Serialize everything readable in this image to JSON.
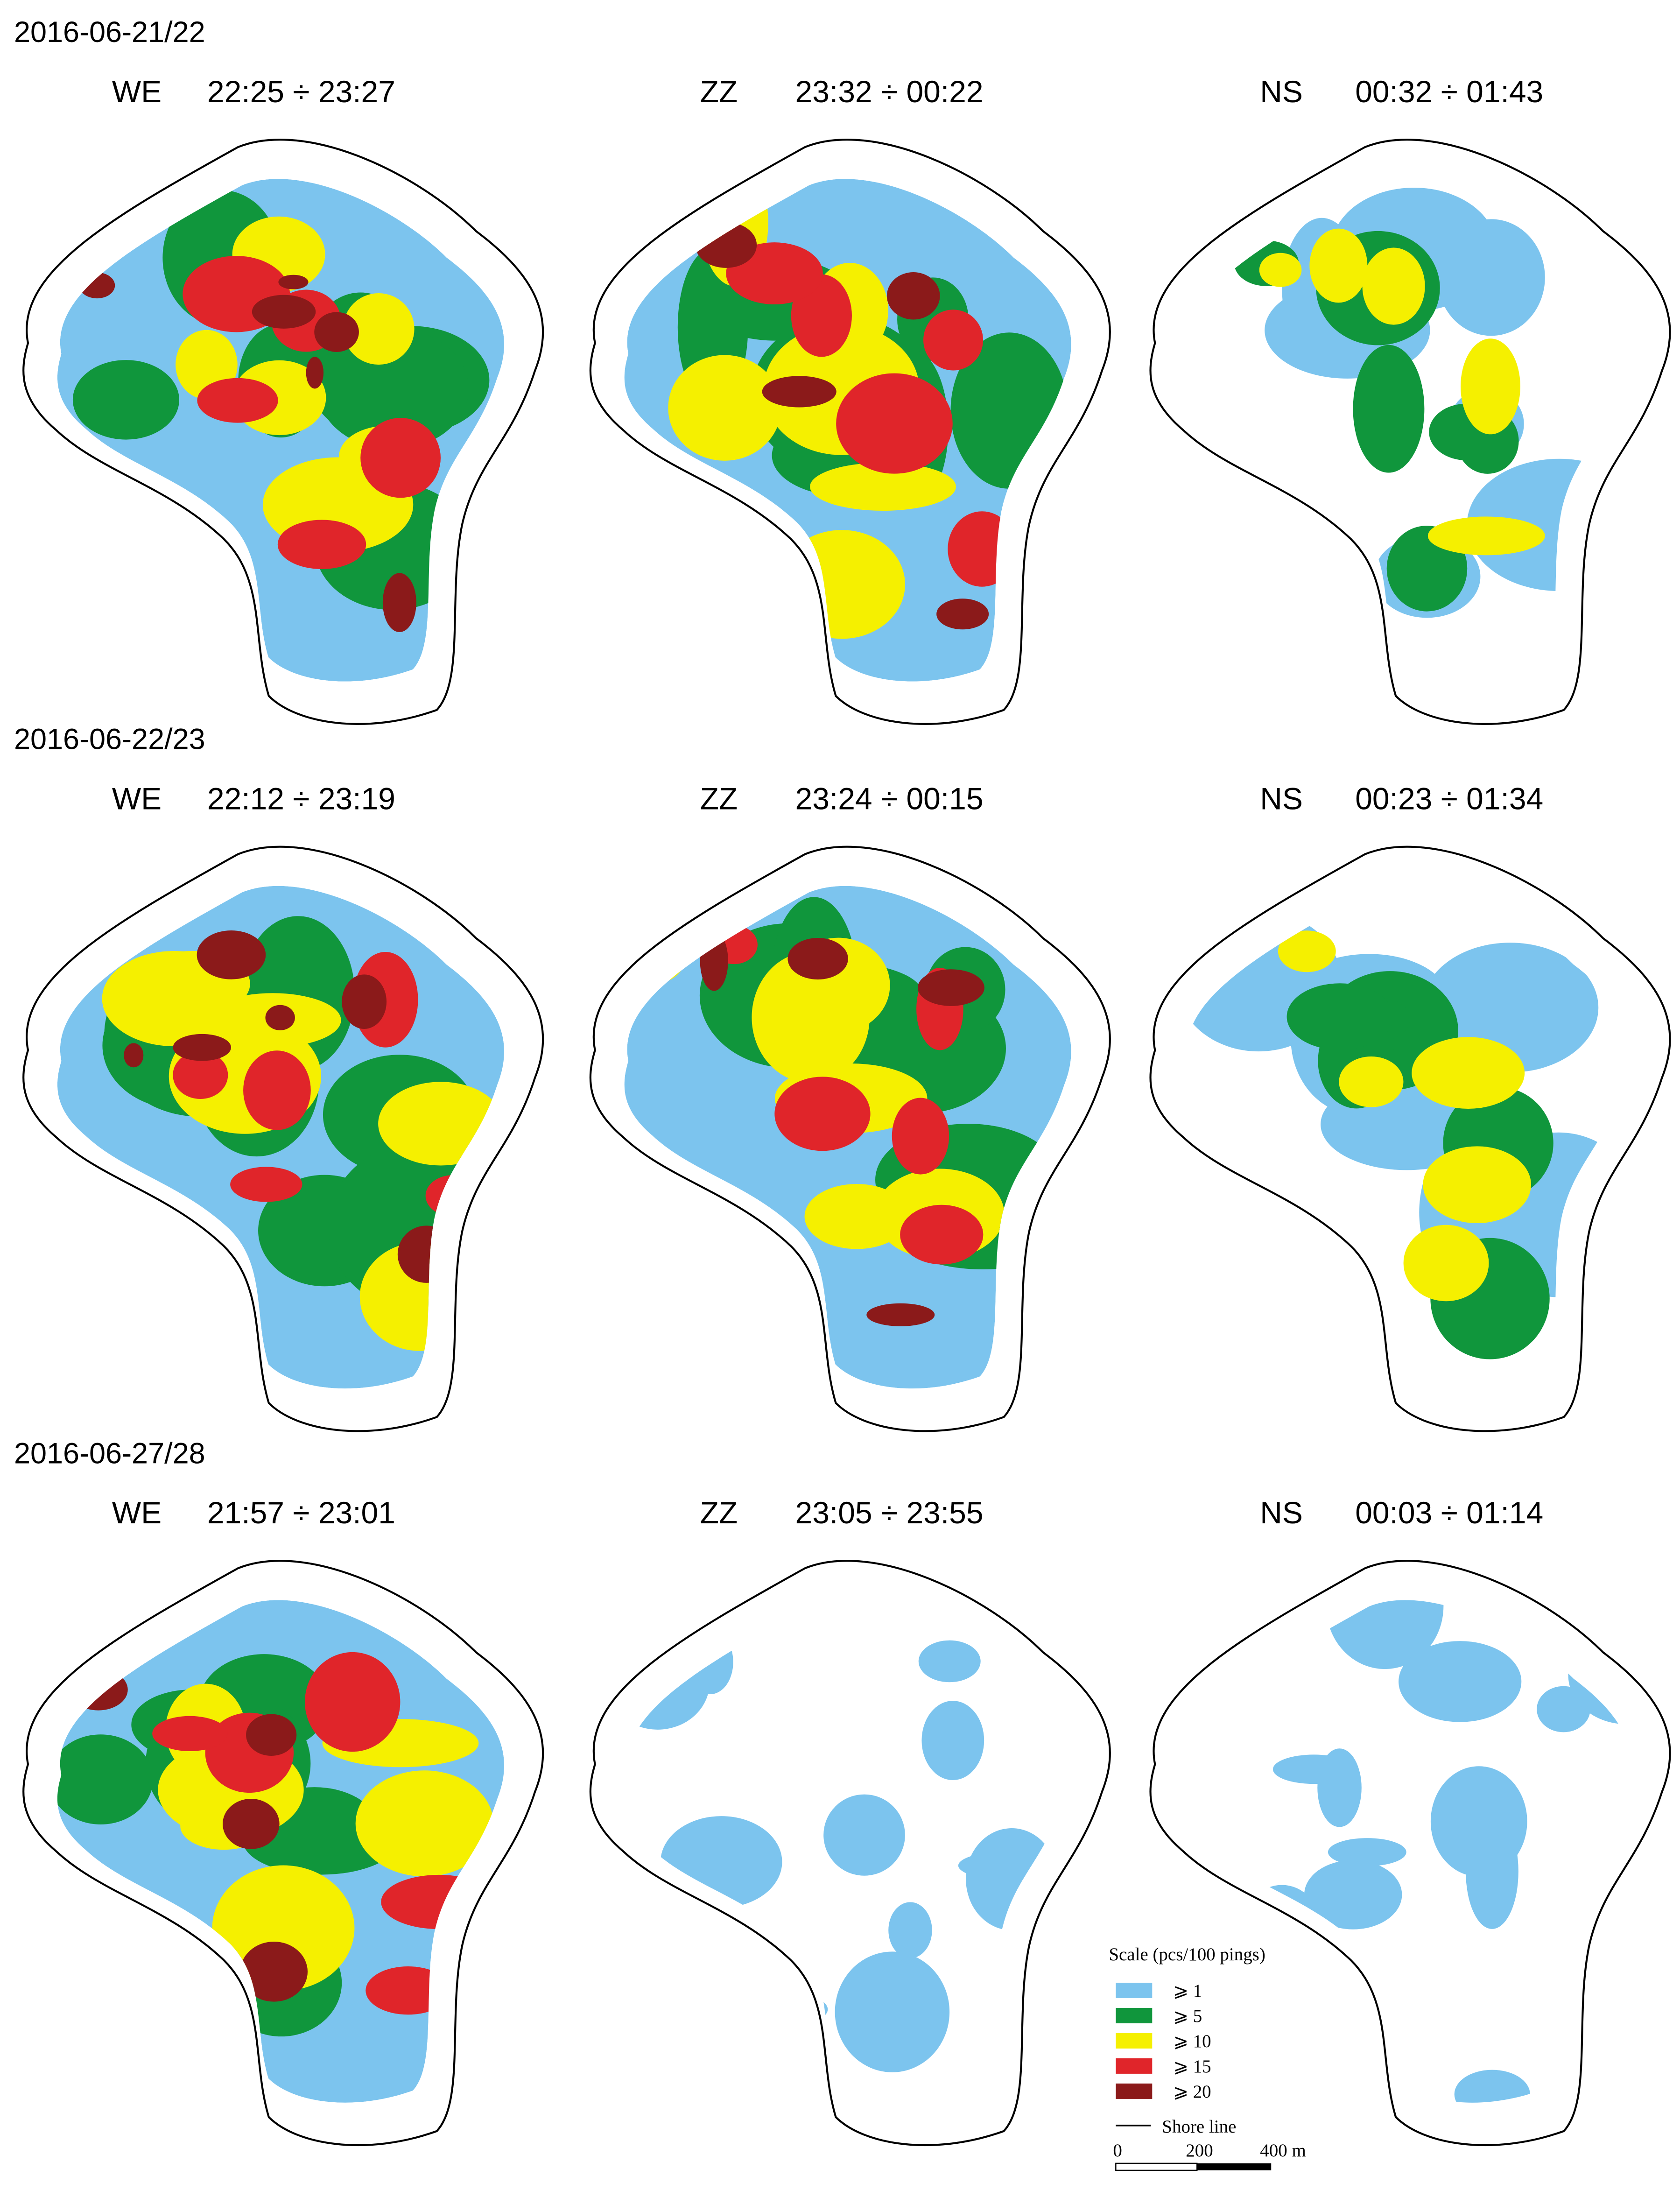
{
  "rows": [
    {
      "date": "2016-06-21/22",
      "panels": [
        {
          "direction": "WE",
          "time": "22:25 ÷ 23:27"
        },
        {
          "direction": "ZZ",
          "time": "23:32 ÷ 00:22"
        },
        {
          "direction": "NS",
          "time": "00:32 ÷ 01:43"
        }
      ]
    },
    {
      "date": "2016-06-22/23",
      "panels": [
        {
          "direction": "WE",
          "time": "22:12 ÷ 23:19"
        },
        {
          "direction": "ZZ",
          "time": "23:24 ÷ 00:15"
        },
        {
          "direction": "NS",
          "time": "00:23 ÷ 01:34"
        }
      ]
    },
    {
      "date": "2016-06-27/28",
      "panels": [
        {
          "direction": "WE",
          "time": "21:57 ÷ 23:01"
        },
        {
          "direction": "ZZ",
          "time": "23:05 ÷ 23:55"
        },
        {
          "direction": "NS",
          "time": "00:03 ÷ 01:14"
        }
      ]
    }
  ],
  "legend": {
    "title": "Scale (pcs/100 pings)",
    "items": [
      {
        "label": "⩾ 1",
        "color": "#7cc4ee"
      },
      {
        "label": "⩾ 5",
        "color": "#10963c"
      },
      {
        "label": "⩾ 10",
        "color": "#f5f000"
      },
      {
        "label": "⩾ 15",
        "color": "#e0252a"
      },
      {
        "label": "⩾ 20",
        "color": "#8b1a1a"
      }
    ],
    "shore_line": "Shore line",
    "scale_labels": [
      "0",
      "200",
      "400 m"
    ]
  }
}
